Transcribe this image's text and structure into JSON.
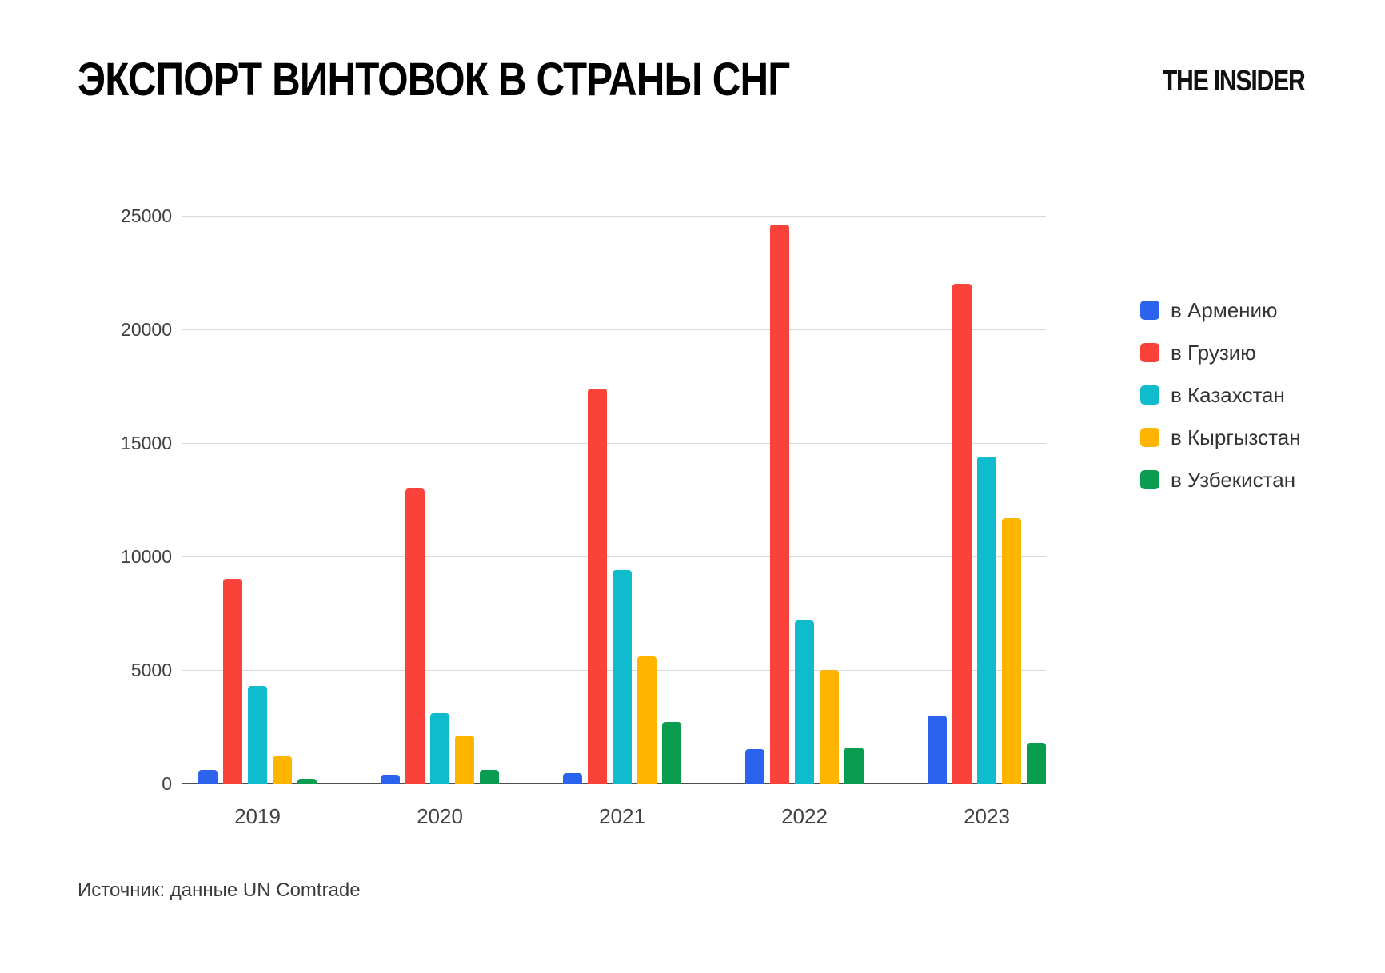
{
  "header": {
    "title": "ЭКСПОРТ ВИНТОВОК В СТРАНЫ СНГ",
    "logo": "THE INSIDER"
  },
  "footer": {
    "source": "Источник: данные UN Comtrade"
  },
  "colors": {
    "armenia_blue": "#2B63EC",
    "georgia_red": "#F8423A",
    "kazakhstan_cyan": "#0EBCCE",
    "kyrgyzstan_amber": "#FFB400",
    "uzbekistan_green": "#0A9C4F",
    "gridline": "#d9d9d9",
    "axis": "#4d4d4d"
  },
  "chart_data": {
    "type": "bar",
    "title": "ЭКСПОРТ ВИНТОВОК В СТРАНЫ СНГ",
    "categories": [
      "2019",
      "2020",
      "2021",
      "2022",
      "2023"
    ],
    "series": [
      {
        "name": "в Армению",
        "color": "#2B63EC",
        "values": [
          600,
          400,
          450,
          1500,
          3000
        ]
      },
      {
        "name": "в Грузию",
        "color": "#F8423A",
        "values": [
          9000,
          13000,
          17400,
          24600,
          22000
        ]
      },
      {
        "name": "в Казахстан",
        "color": "#0EBCCE",
        "values": [
          4300,
          3100,
          9400,
          7200,
          14400
        ]
      },
      {
        "name": "в Кыргызстан",
        "color": "#FFB400",
        "values": [
          1200,
          2100,
          5600,
          5000,
          11700
        ]
      },
      {
        "name": "в Узбекистан",
        "color": "#0A9C4F",
        "values": [
          200,
          600,
          2700,
          1600,
          1800
        ]
      }
    ],
    "xlabel": "",
    "ylabel": "",
    "ylim": [
      0,
      25000
    ],
    "yticks": [
      0,
      5000,
      10000,
      15000,
      20000,
      25000
    ],
    "grid": true,
    "legend_position": "right",
    "source": "Источник: данные UN Comtrade"
  }
}
